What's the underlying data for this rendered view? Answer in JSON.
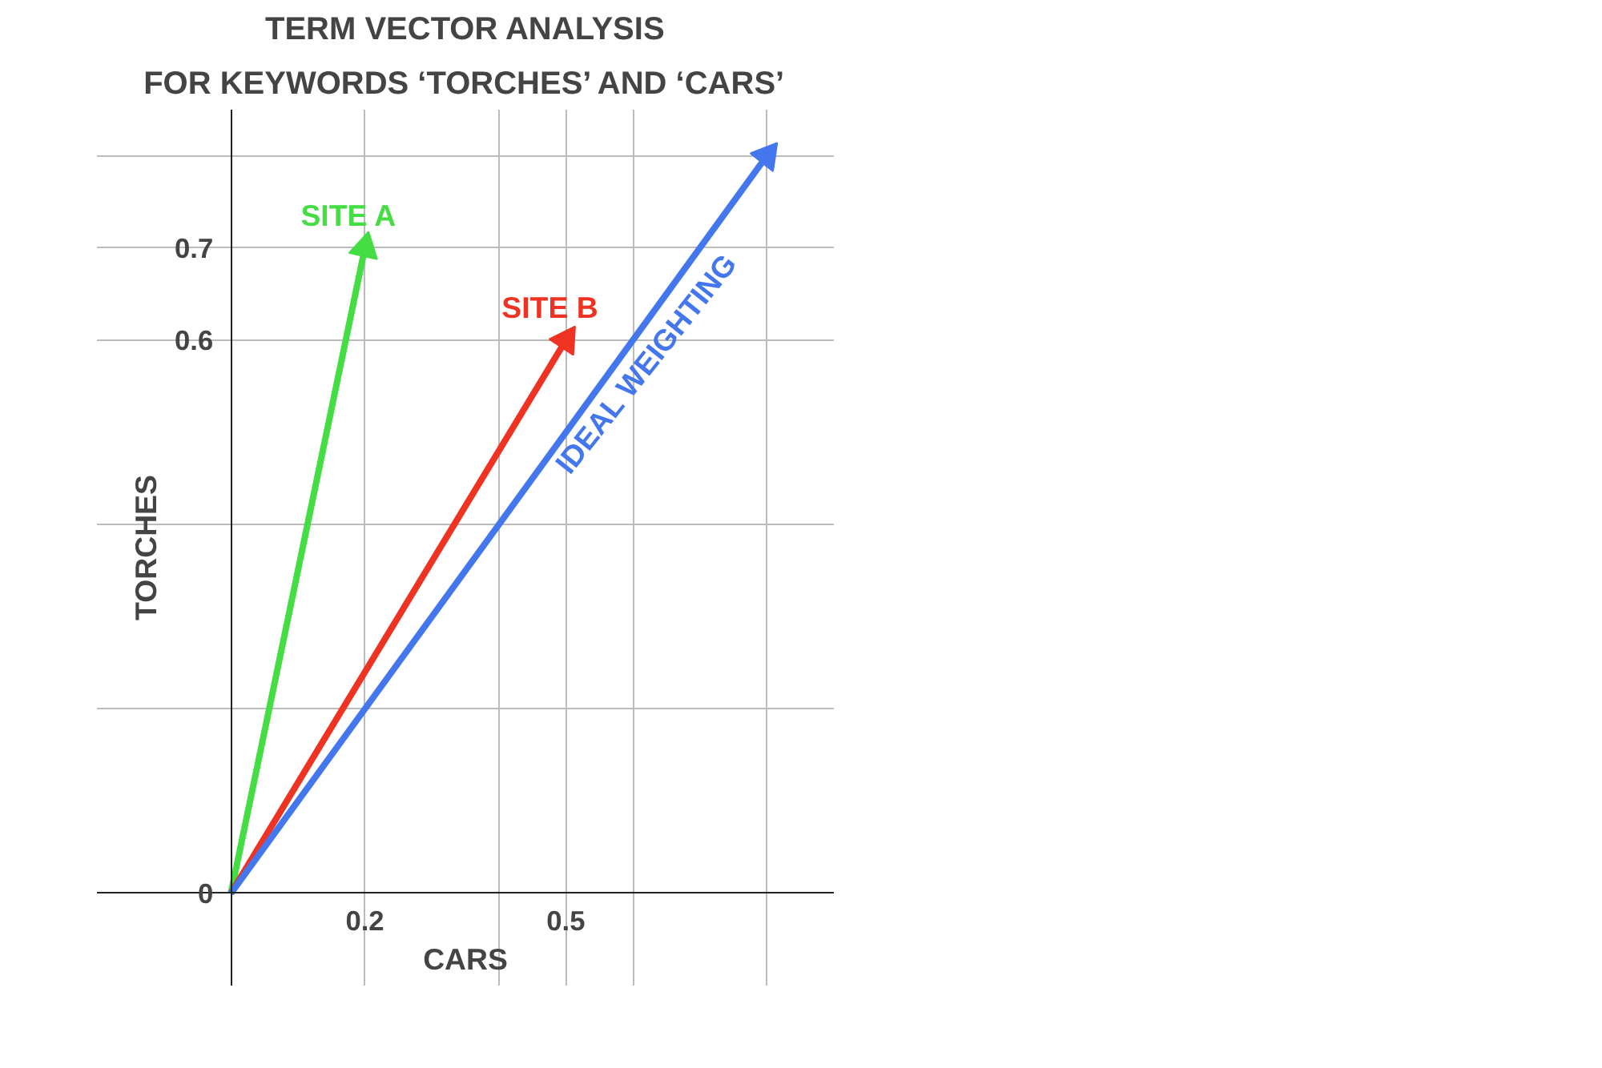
{
  "chart_data": {
    "type": "line",
    "title": "TERM VECTOR ANALYSIS",
    "subtitle": "FOR KEYWORDS ‘TORCHES’ AND ‘CARS’",
    "xlabel": "CARS",
    "ylabel": "TORCHES",
    "xlim": [
      -0.2,
      0.9
    ],
    "ylim": [
      -0.1,
      0.85
    ],
    "xticks": [
      {
        "value": 0,
        "label": null
      },
      0.2,
      {
        "value": 0.4,
        "label": null
      },
      0.5,
      {
        "value": 0.6,
        "label": null
      },
      {
        "value": 0.8,
        "label": null
      }
    ],
    "yticks": [
      0,
      {
        "value": 0.2,
        "label": null
      },
      {
        "value": 0.4,
        "label": null
      },
      0.6,
      0.7,
      {
        "value": 0.8,
        "label": null
      }
    ],
    "grid": true,
    "line_style": "solid",
    "series": [
      {
        "name": "SITE A",
        "color": "#44dd44",
        "x": [
          0,
          0.2
        ],
        "values": [
          0,
          0.7
        ]
      },
      {
        "name": "SITE B",
        "color": "#ee3322",
        "x": [
          0,
          0.5
        ],
        "values": [
          0,
          0.6
        ]
      },
      {
        "name": "IDEAL WEIGHTING",
        "color": "#4477ee",
        "x": [
          0,
          0.8
        ],
        "values": [
          0,
          0.8
        ]
      }
    ]
  }
}
